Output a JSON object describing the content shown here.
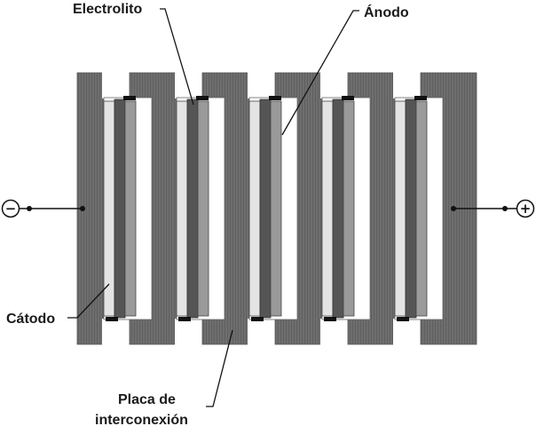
{
  "labels": {
    "electrolyte": "Electrolito",
    "anode": "Ánodo",
    "cathode": "Cátodo",
    "interconnect_line1": "Placa de",
    "interconnect_line2": "interconexión"
  },
  "terminals": {
    "negative": "−",
    "positive": "+"
  },
  "colors": {
    "plate": "#707070",
    "anode": "#9a9a9a",
    "electrolyte": "#555555",
    "cathode": "#e4e4e4",
    "seal": "#111111",
    "line": "#111111"
  }
}
